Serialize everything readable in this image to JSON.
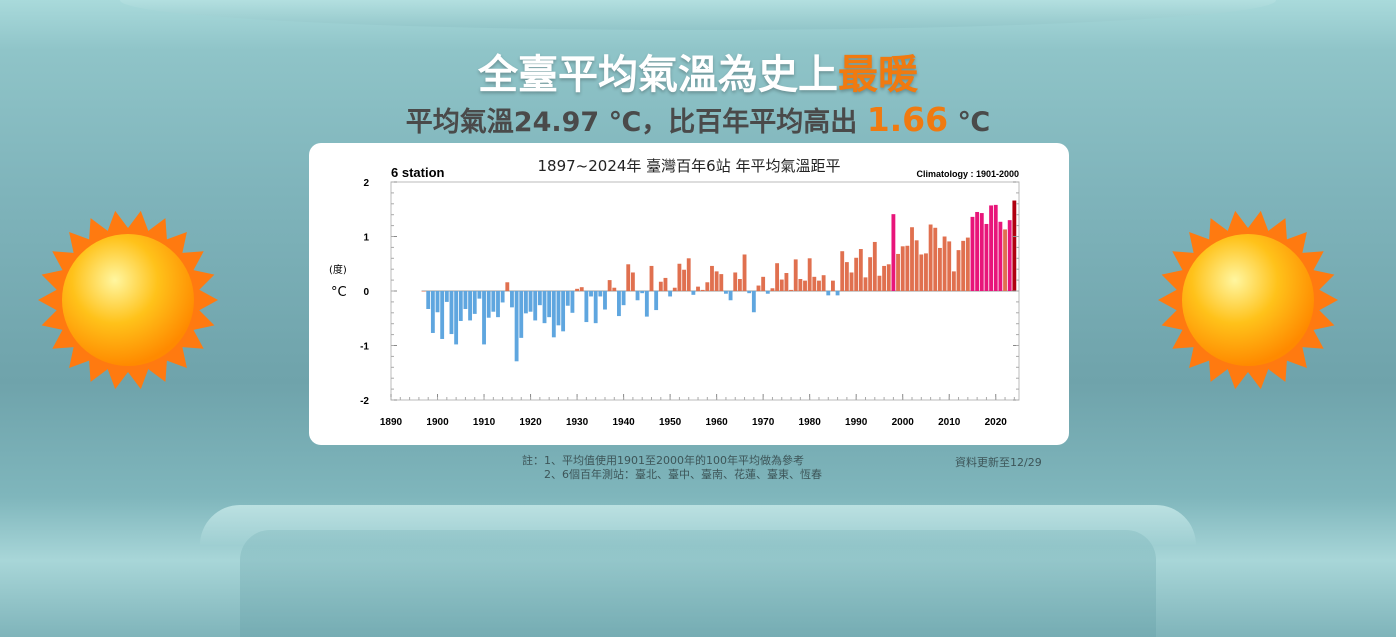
{
  "header": {
    "title_main": "全臺平均氣溫為史上",
    "title_highlight": "最暖",
    "subtitle_prefix": "平均氣溫24.97 ℃，比百年平均高出 ",
    "subtitle_value": "1.66",
    "subtitle_unit": " ℃"
  },
  "notes": {
    "line1": "註：1、平均值使用1901至2000年的100年平均做為參考",
    "line2": "2、6個百年測站：臺北、臺中、臺南、花蓮、臺東、恆春",
    "updated": "資料更新至12/29"
  },
  "colors": {
    "negative": "#5fa6df",
    "positive": "#e0704f",
    "top10": "#e8157a",
    "latest": "#b0000f",
    "accent": "#f07a10"
  },
  "chart_data": {
    "type": "bar",
    "title": "1897~2024年  臺灣百年6站 年平均氣溫距平",
    "left_label": "6 station",
    "right_label": "Climatology : 1901-2000",
    "ylabel_top": "(度)",
    "ylabel": "°C",
    "ylim": [
      -2,
      2
    ],
    "xlim": [
      1890,
      2025
    ],
    "yticks": [
      2,
      1,
      0,
      -1,
      -2
    ],
    "xticks": [
      1890,
      1900,
      1910,
      1920,
      1930,
      1940,
      1950,
      1960,
      1970,
      1980,
      1990,
      2000,
      2010,
      2020
    ],
    "start_year": 1897,
    "highlight_years": [
      1998,
      2015,
      2016,
      2017,
      2018,
      2019,
      2020,
      2021,
      2023
    ],
    "latest_year": 2024,
    "values": [
      0.0,
      -0.33,
      -0.77,
      -0.39,
      -0.88,
      -0.2,
      -0.79,
      -0.98,
      -0.55,
      -0.33,
      -0.54,
      -0.42,
      -0.14,
      -0.98,
      -0.49,
      -0.38,
      -0.48,
      -0.21,
      0.16,
      -0.3,
      -1.29,
      -0.86,
      -0.41,
      -0.38,
      -0.54,
      -0.26,
      -0.59,
      -0.48,
      -0.85,
      -0.63,
      -0.74,
      -0.27,
      -0.4,
      0.04,
      0.07,
      -0.57,
      -0.1,
      -0.59,
      -0.1,
      -0.34,
      0.2,
      0.06,
      -0.46,
      -0.26,
      0.49,
      0.34,
      -0.17,
      -0.04,
      -0.47,
      0.46,
      -0.35,
      0.17,
      0.24,
      -0.1,
      0.06,
      0.5,
      0.39,
      0.6,
      -0.07,
      0.08,
      0.02,
      0.16,
      0.46,
      0.36,
      0.31,
      -0.05,
      -0.17,
      0.34,
      0.22,
      0.67,
      -0.04,
      -0.39,
      0.1,
      0.26,
      -0.05,
      0.05,
      0.51,
      0.21,
      0.33,
      0.02,
      0.58,
      0.22,
      0.19,
      0.6,
      0.26,
      0.19,
      0.29,
      -0.08,
      0.19,
      -0.08,
      0.73,
      0.53,
      0.34,
      0.61,
      0.77,
      0.25,
      0.62,
      0.9,
      0.28,
      0.46,
      0.49,
      1.41,
      0.68,
      0.82,
      0.83,
      1.17,
      0.93,
      0.67,
      0.69,
      1.22,
      1.16,
      0.79,
      1.0,
      0.91,
      0.36,
      0.75,
      0.92,
      0.98,
      1.36,
      1.45,
      1.43,
      1.23,
      1.57,
      1.58,
      1.27,
      1.13,
      1.3,
      1.66
    ]
  }
}
